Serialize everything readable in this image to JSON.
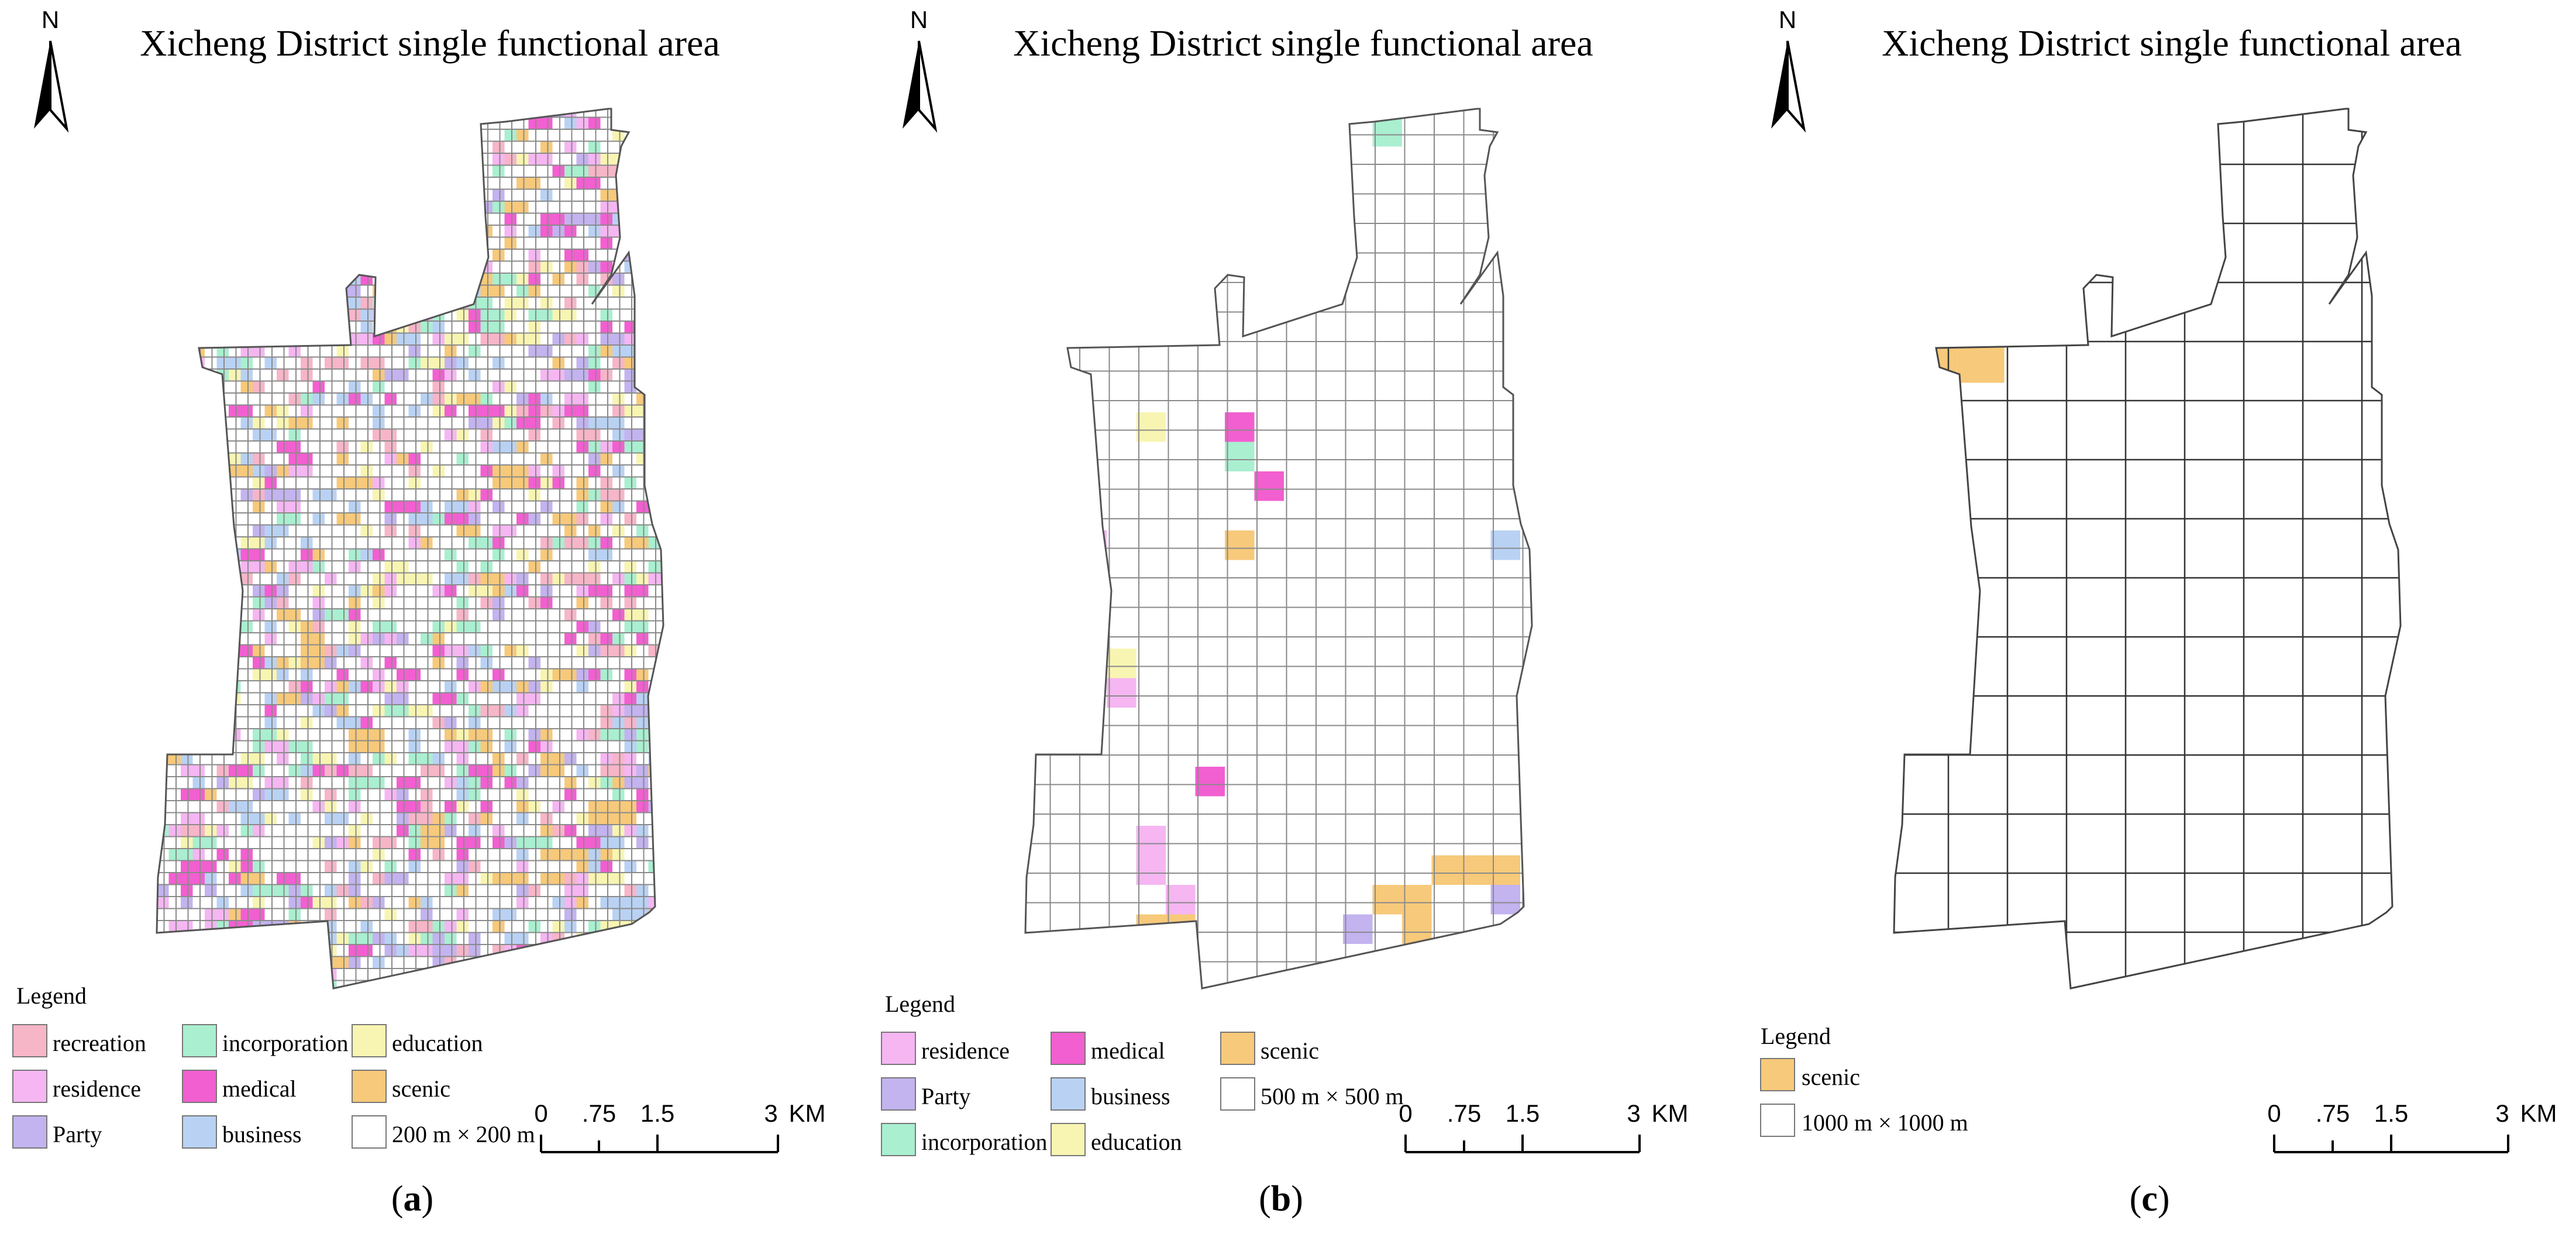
{
  "figure": {
    "panels": [
      {
        "id": "a",
        "title": "Xicheng District single functional area",
        "north": "N",
        "legend_title": "Legend",
        "legend": [
          {
            "label": "recreation",
            "color": "#f7b5c8"
          },
          {
            "label": "residence",
            "color": "#f5b6f2"
          },
          {
            "label": "Party",
            "color": "#c3b3ef"
          },
          {
            "label": "incorporation",
            "color": "#a9efd0"
          },
          {
            "label": "medical",
            "color": "#f25fd0"
          },
          {
            "label": "business",
            "color": "#b9d2f4"
          },
          {
            "label": "education",
            "color": "#f8f5b2"
          },
          {
            "label": "scenic",
            "color": "#f7c97a"
          },
          {
            "label": "200 m × 200 m",
            "color": "#ffffff"
          }
        ],
        "scale": {
          "ticks": [
            "0",
            ".75",
            "1.5",
            "3"
          ],
          "unit": "KM"
        },
        "panel_label": {
          "open": "(",
          "letter": "a",
          "close": ")"
        }
      },
      {
        "id": "b",
        "title": "Xicheng District single functional area",
        "north": "N",
        "legend_title": "Legend",
        "legend": [
          {
            "label": "residence",
            "color": "#f5b6f2"
          },
          {
            "label": "Party",
            "color": "#c3b3ef"
          },
          {
            "label": "incorporation",
            "color": "#a9efd0"
          },
          {
            "label": "medical",
            "color": "#f25fd0"
          },
          {
            "label": "business",
            "color": "#b9d2f4"
          },
          {
            "label": "education",
            "color": "#f8f5b2"
          },
          {
            "label": "scenic",
            "color": "#f7c97a"
          },
          {
            "label": "500 m × 500 m",
            "color": "#ffffff"
          }
        ],
        "scale": {
          "ticks": [
            "0",
            ".75",
            "1.5",
            "3"
          ],
          "unit": "KM"
        },
        "panel_label": {
          "open": "(",
          "letter": "b",
          "close": ")"
        }
      },
      {
        "id": "c",
        "title": "Xicheng District single functional area",
        "north": "N",
        "legend_title": "Legend",
        "legend": [
          {
            "label": "scenic",
            "color": "#f7c97a"
          },
          {
            "label": "1000 m × 1000 m",
            "color": "#ffffff"
          }
        ],
        "scale": {
          "ticks": [
            "0",
            ".75",
            "1.5",
            "3"
          ],
          "unit": "KM"
        },
        "panel_label": {
          "open": "(",
          "letter": "c",
          "close": ")"
        }
      }
    ]
  }
}
